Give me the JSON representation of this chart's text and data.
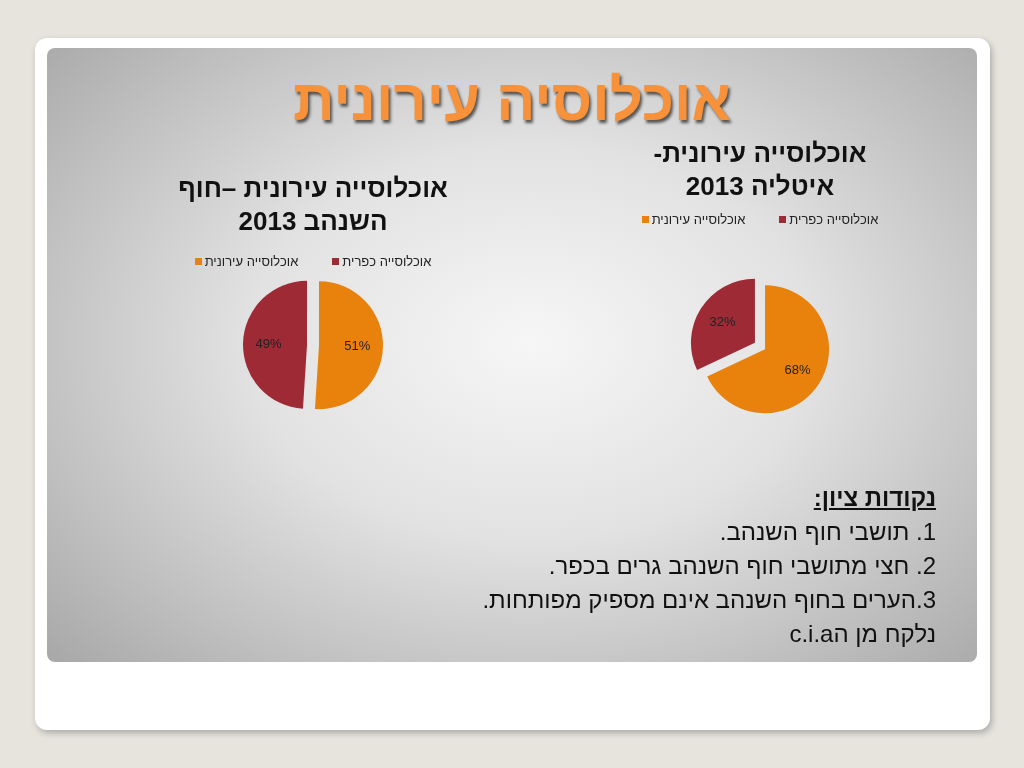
{
  "chart_data": [
    {
      "type": "other",
      "title": "אוכלוסיה עירונית"
    },
    {
      "type": "pie",
      "title": "אוכלוסייה עירונית- איטליה 2013",
      "categories": [
        "אוכלוסייה עירונית",
        "אוכלוסייה כפרית"
      ],
      "values": [
        68,
        32
      ],
      "colors": [
        "#e8820c",
        "#9e2a36"
      ],
      "value_labels": [
        "68%",
        "32%"
      ],
      "legend": "top"
    },
    {
      "type": "pie",
      "title": "אוכלוסייה עירונית –חוף השנהב 2013",
      "categories": [
        "אוכלוסייה עירונית",
        "אוכלוסייה כפרית"
      ],
      "values": [
        51,
        49
      ],
      "colors": [
        "#e8820c",
        "#9e2a36"
      ],
      "value_labels": [
        "51%",
        "49%"
      ],
      "legend": "top"
    },
    {
      "type": "other",
      "title": "נקודות ציון:",
      "annotations": [
        "1. תושבי חוף השנהב.",
        "2. חצי מתושבי חוף השנהב גרים בכפר.",
        "3.הערים בחוף השנהב אינם מספיק מפותחות.",
        "נלקח מן הc.i.a"
      ]
    }
  ]
}
